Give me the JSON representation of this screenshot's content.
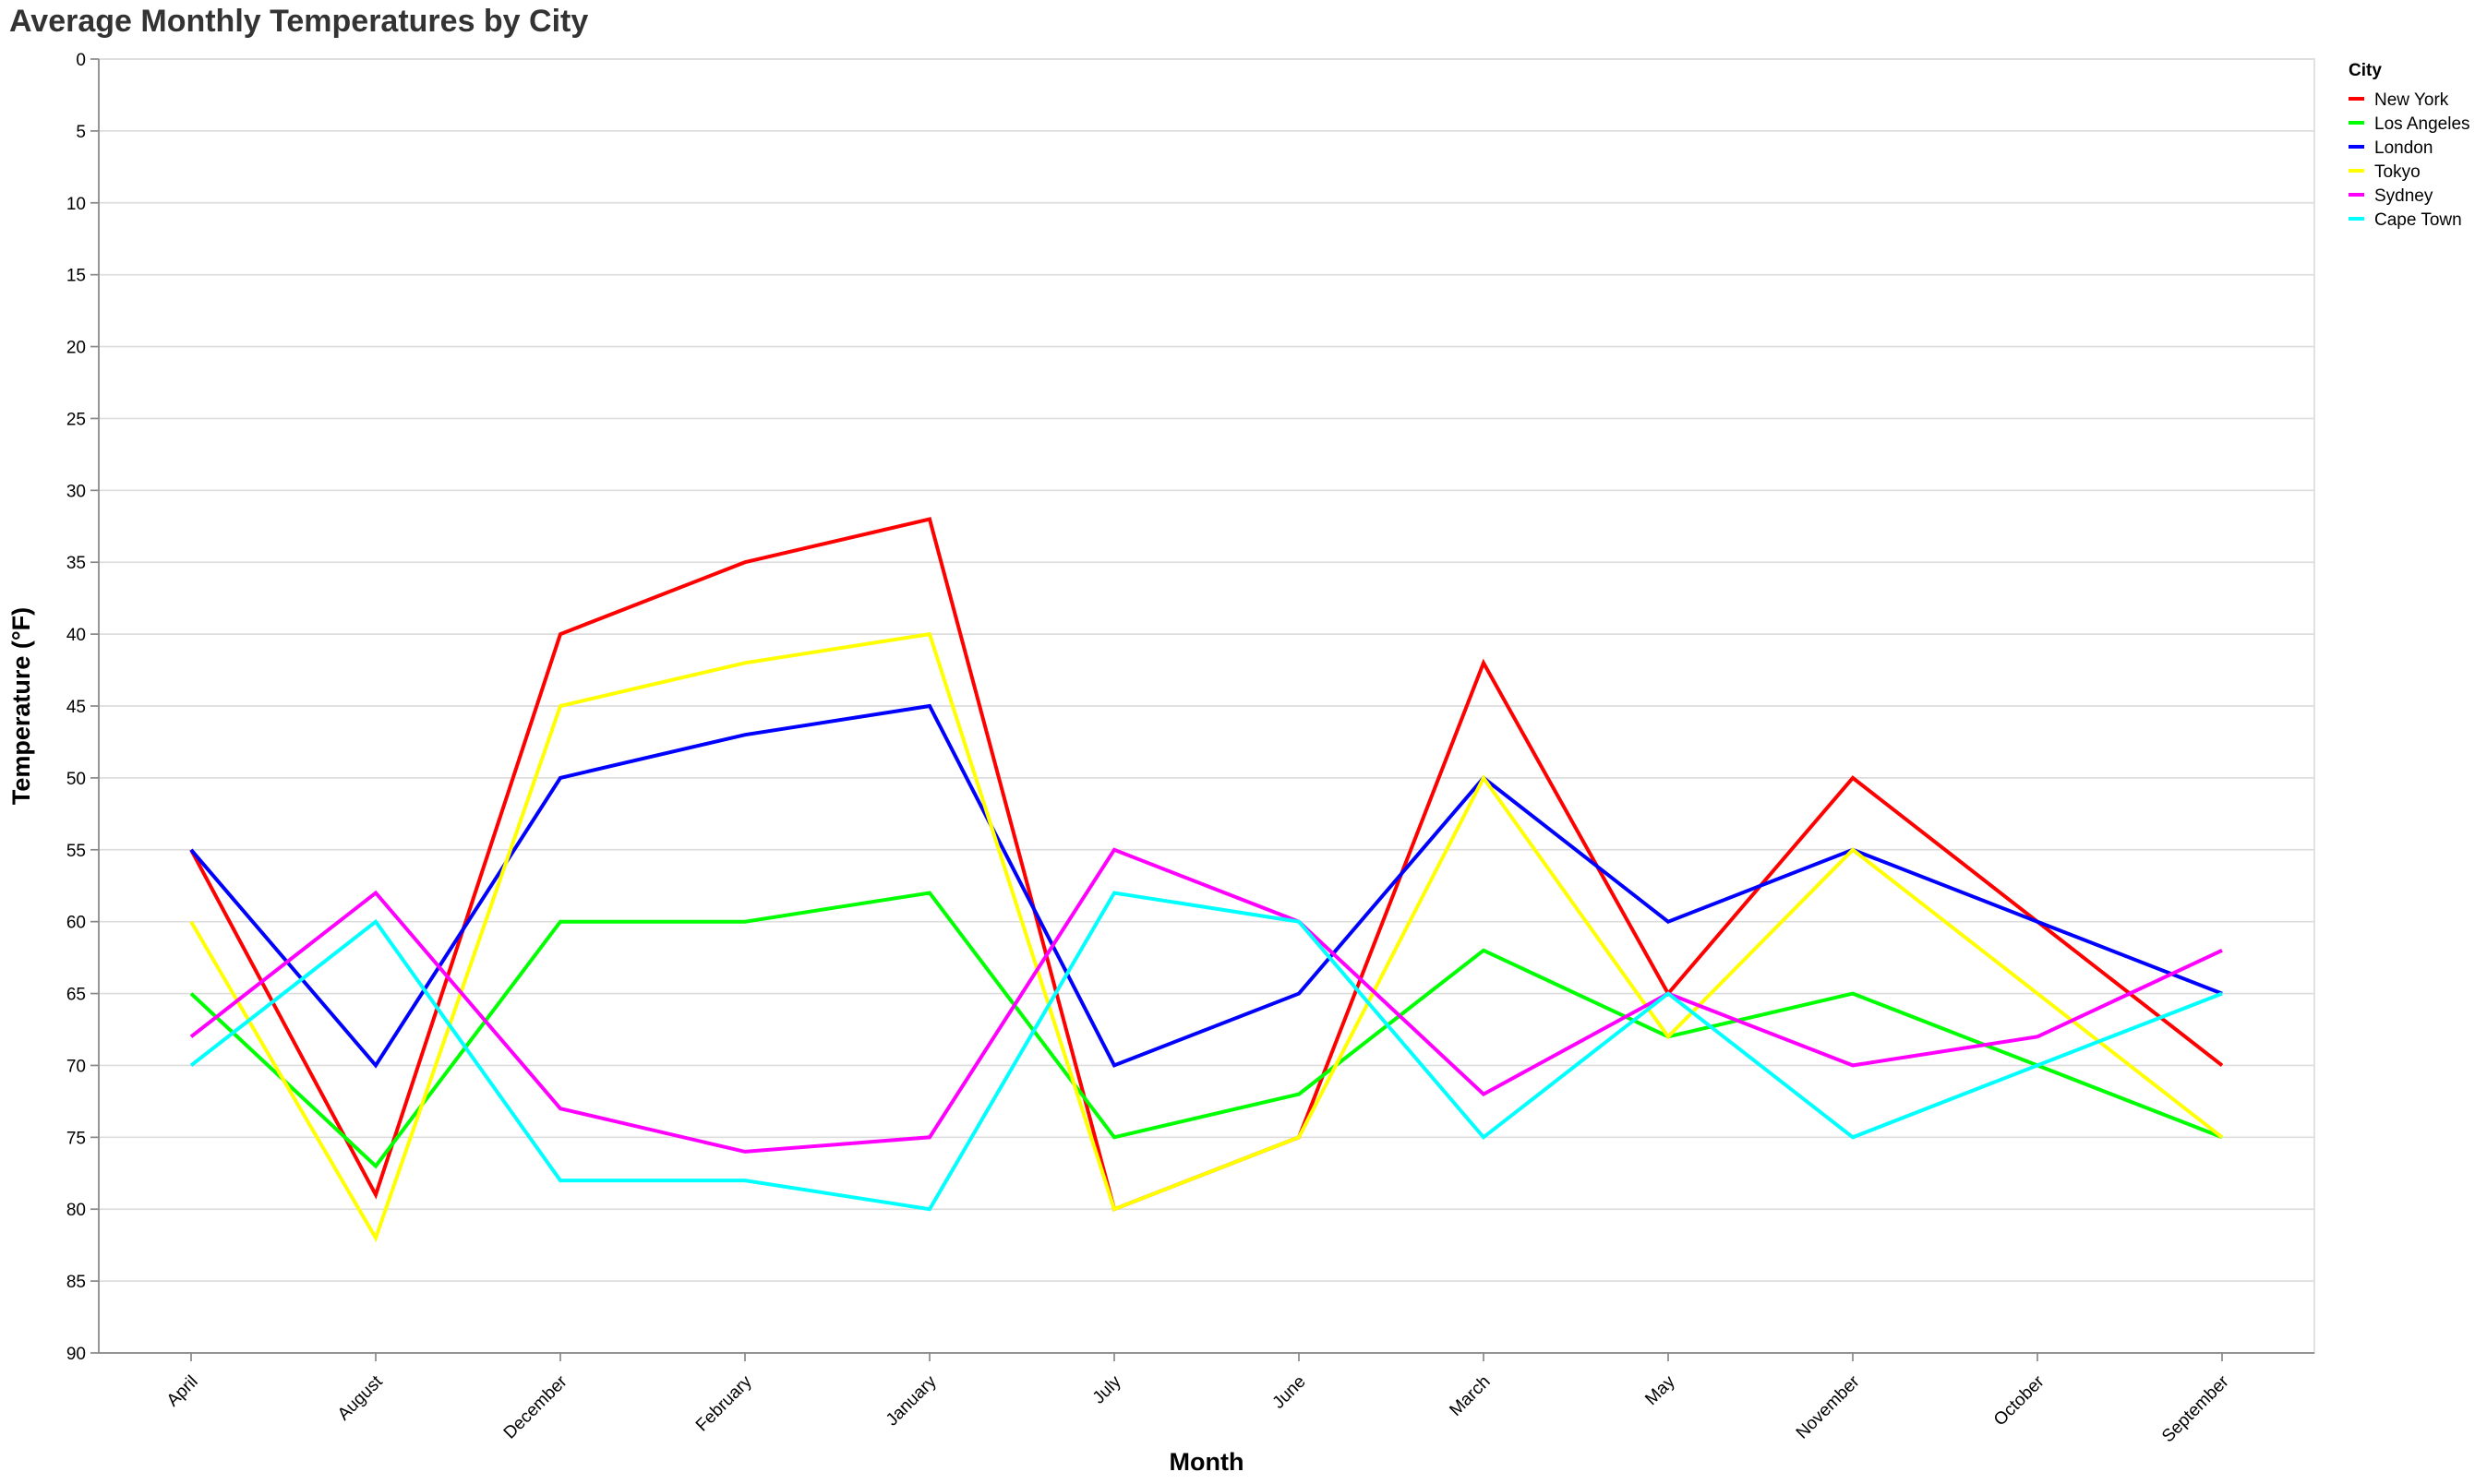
{
  "chart_data": {
    "type": "line",
    "title": "Average Monthly Temperatures by City",
    "xlabel": "Month",
    "ylabel": "Temperature (°F)",
    "categories": [
      "April",
      "August",
      "December",
      "February",
      "January",
      "July",
      "June",
      "March",
      "May",
      "November",
      "October",
      "September"
    ],
    "ylim": [
      0,
      90
    ],
    "y_ticks": [
      0,
      5,
      10,
      15,
      20,
      25,
      30,
      35,
      40,
      45,
      50,
      55,
      60,
      65,
      70,
      75,
      80,
      85,
      90
    ],
    "y_reversed": true,
    "grid": true,
    "legend_title": "City",
    "legend_position": "top-right",
    "series": [
      {
        "name": "New York",
        "color": "#ff0000",
        "values": [
          55,
          79,
          40,
          35,
          32,
          80,
          75,
          42,
          65,
          50,
          60,
          70
        ]
      },
      {
        "name": "Los Angeles",
        "color": "#00ff00",
        "values": [
          65,
          77,
          60,
          60,
          58,
          75,
          72,
          62,
          68,
          65,
          70,
          75
        ]
      },
      {
        "name": "London",
        "color": "#0000ff",
        "values": [
          55,
          70,
          50,
          47,
          45,
          70,
          65,
          50,
          60,
          55,
          60,
          65
        ]
      },
      {
        "name": "Tokyo",
        "color": "#ffff00",
        "values": [
          60,
          82,
          45,
          42,
          40,
          80,
          75,
          50,
          68,
          55,
          65,
          75
        ]
      },
      {
        "name": "Sydney",
        "color": "#ff00ff",
        "values": [
          68,
          58,
          73,
          76,
          75,
          55,
          60,
          72,
          65,
          70,
          68,
          62
        ]
      },
      {
        "name": "Cape Town",
        "color": "#00ffff",
        "values": [
          70,
          60,
          78,
          78,
          80,
          58,
          60,
          75,
          65,
          75,
          70,
          65
        ]
      }
    ]
  }
}
